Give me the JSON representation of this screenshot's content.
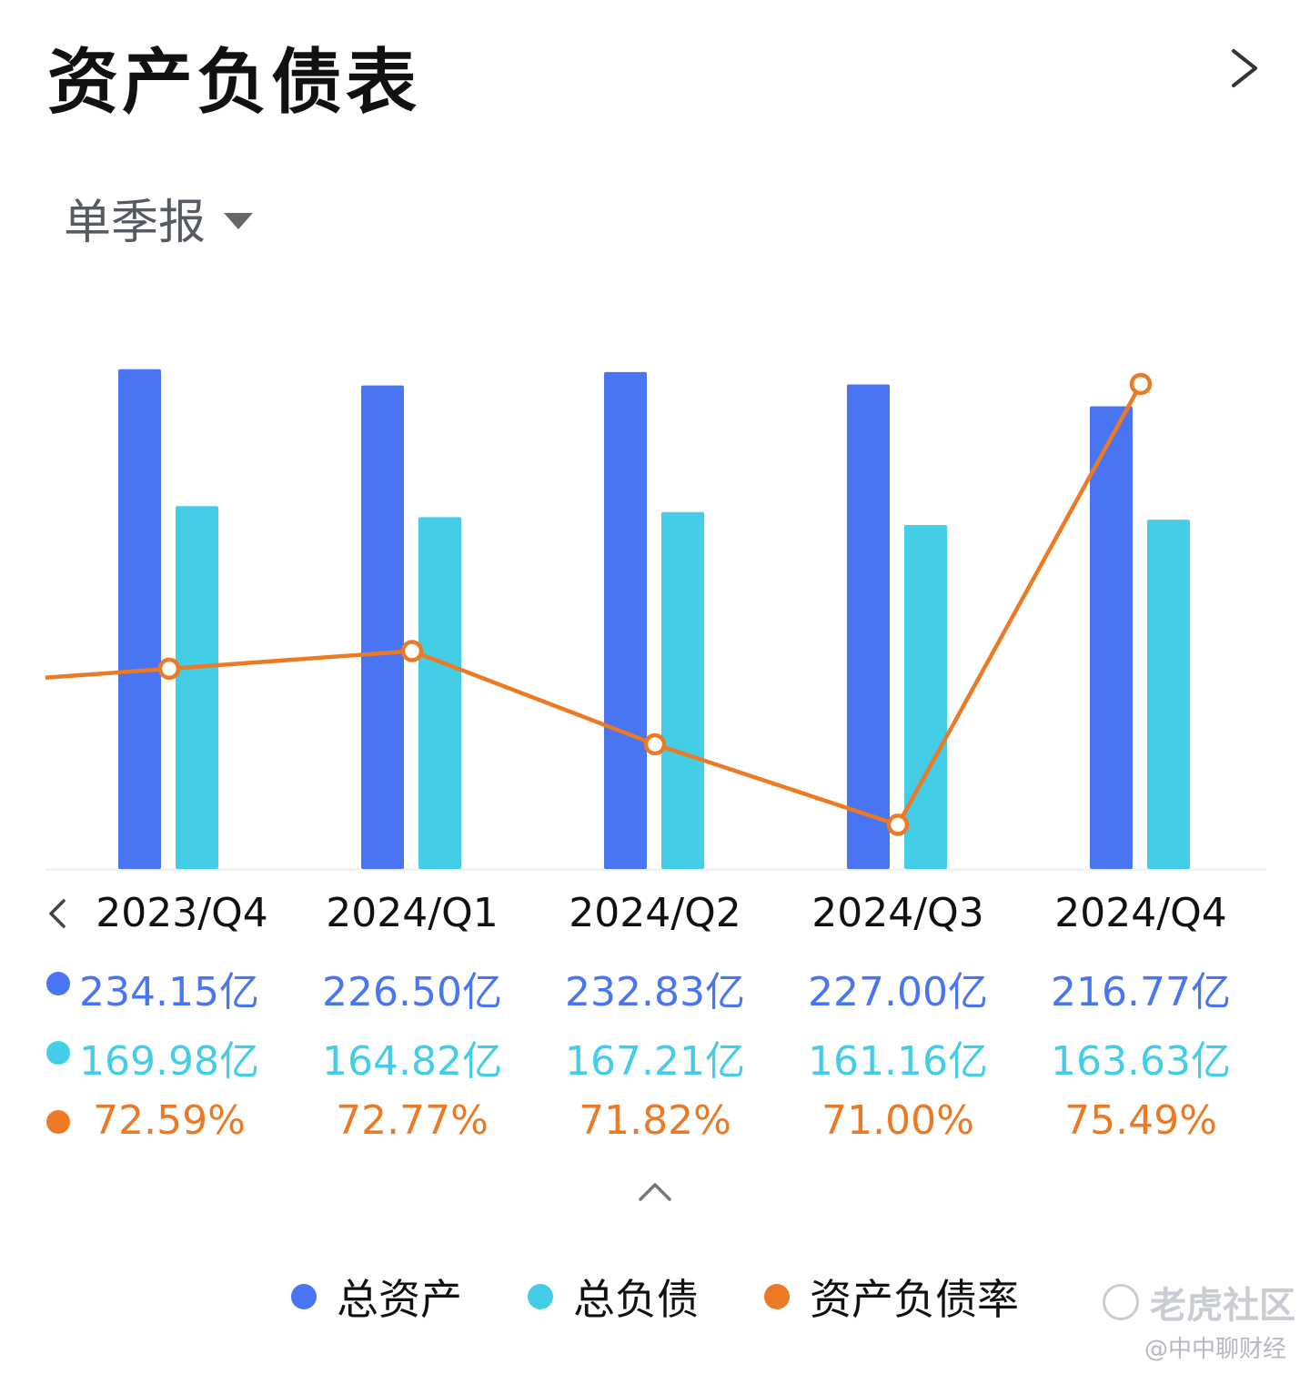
{
  "header": {
    "title": "资产负债表",
    "more_icon": "chevron-right-icon"
  },
  "period_selector": {
    "label": "单季报",
    "icon": "caret-down-icon"
  },
  "colors": {
    "assets": "#4a75f2",
    "liabilities": "#43cde6",
    "ratio": "#ec7a25"
  },
  "chart_data": {
    "type": "bar",
    "categories": [
      "2023/Q4",
      "2024/Q1",
      "2024/Q2",
      "2024/Q3",
      "2024/Q4"
    ],
    "series": [
      {
        "name": "总资产",
        "type": "bar",
        "values": [
          234.15,
          226.5,
          232.83,
          227.0,
          216.77
        ],
        "labels": [
          "234.15亿",
          "226.50亿",
          "232.83亿",
          "227.00亿",
          "216.77亿"
        ]
      },
      {
        "name": "总负债",
        "type": "bar",
        "values": [
          169.98,
          164.82,
          167.21,
          161.16,
          163.63
        ],
        "labels": [
          "169.98亿",
          "164.82亿",
          "167.21亿",
          "161.16亿",
          "163.63亿"
        ]
      },
      {
        "name": "资产负债率",
        "type": "line",
        "values": [
          72.59,
          72.77,
          71.82,
          71.0,
          75.49
        ],
        "labels": [
          "72.59%",
          "72.77%",
          "71.82%",
          "71.00%",
          "75.49%"
        ]
      }
    ],
    "ylim": [
      0,
      240
    ],
    "ratio_ylim": [
      70.8,
      76.0
    ],
    "grid": false,
    "legend_position": "bottom"
  },
  "nav": {
    "prev_icon": "chevron-left-icon",
    "collapse_icon": "chevron-up-icon"
  },
  "watermark": {
    "brand": "老虎社区",
    "author": "@中中聊财经"
  }
}
